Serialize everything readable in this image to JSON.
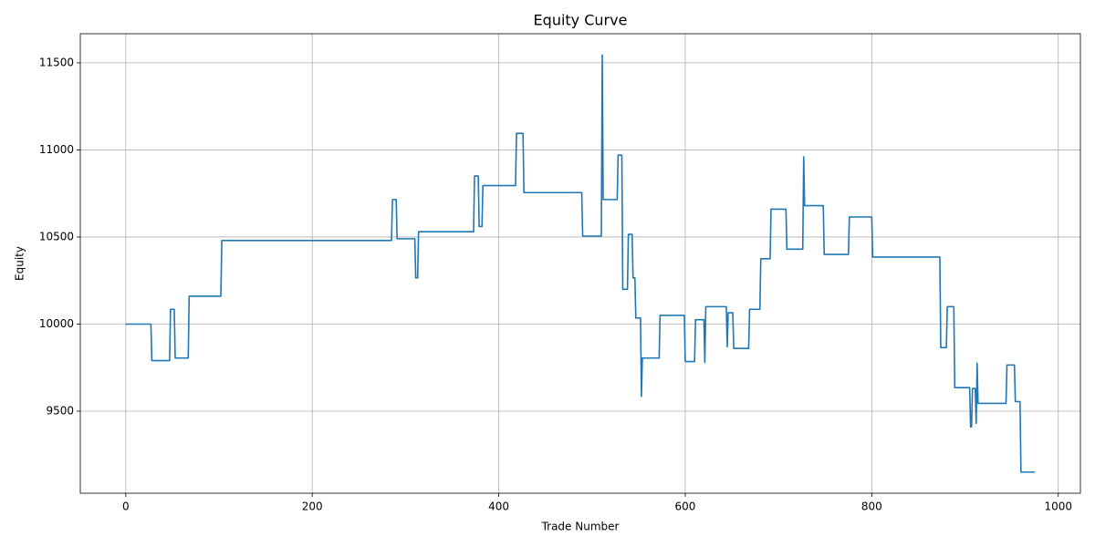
{
  "chart_data": {
    "type": "line",
    "title": "Equity Curve",
    "xlabel": "Trade Number",
    "ylabel": "Equity",
    "grid": true,
    "xlim": [
      -48.75,
      1023.75
    ],
    "ylim": [
      9029,
      11667
    ],
    "xticks": [
      0,
      200,
      400,
      600,
      800,
      1000
    ],
    "yticks": [
      9500,
      10000,
      10500,
      11000,
      11500
    ],
    "series": [
      {
        "name": "Equity",
        "color": "#1f77b4",
        "x": [
          0,
          27,
          28,
          47,
          48,
          52,
          53,
          67,
          68,
          102,
          103,
          285,
          286,
          290,
          291,
          310,
          311,
          313,
          314,
          373,
          374,
          378,
          379,
          382,
          383,
          418,
          419,
          426,
          427,
          489,
          490,
          510,
          511,
          512,
          527,
          528,
          532,
          533,
          538,
          539,
          543,
          544,
          546,
          547,
          552,
          553,
          554,
          572,
          573,
          599,
          600,
          610,
          611,
          620,
          621,
          622,
          644,
          645,
          646,
          651,
          652,
          668,
          669,
          680,
          681,
          691,
          692,
          708,
          709,
          726,
          727,
          728,
          748,
          749,
          775,
          776,
          800,
          801,
          873,
          874,
          880,
          881,
          888,
          889,
          905,
          906,
          907,
          908,
          911,
          912,
          913,
          914,
          944,
          945,
          953,
          954,
          959,
          960,
          975
        ],
        "values": [
          10000,
          10000,
          9790,
          9790,
          10085,
          10085,
          9805,
          9805,
          10160,
          10160,
          10480,
          10480,
          10715,
          10715,
          10490,
          10490,
          10265,
          10265,
          10530,
          10530,
          10850,
          10850,
          10560,
          10560,
          10795,
          10795,
          11095,
          11095,
          10755,
          10755,
          10505,
          10505,
          11545,
          10715,
          10715,
          10970,
          10970,
          10200,
          10200,
          10515,
          10515,
          10265,
          10265,
          10035,
          10035,
          9585,
          9805,
          9805,
          10050,
          10050,
          9785,
          9785,
          10025,
          10025,
          9780,
          10100,
          10100,
          9870,
          10065,
          10065,
          9860,
          9860,
          10085,
          10085,
          10375,
          10375,
          10660,
          10660,
          10430,
          10430,
          10960,
          10680,
          10680,
          10400,
          10400,
          10615,
          10615,
          10385,
          10385,
          9865,
          9865,
          10100,
          10100,
          9635,
          9635,
          9410,
          9410,
          9630,
          9630,
          9430,
          9775,
          9545,
          9545,
          9765,
          9765,
          9555,
          9555,
          9150,
          9150
        ]
      }
    ]
  }
}
